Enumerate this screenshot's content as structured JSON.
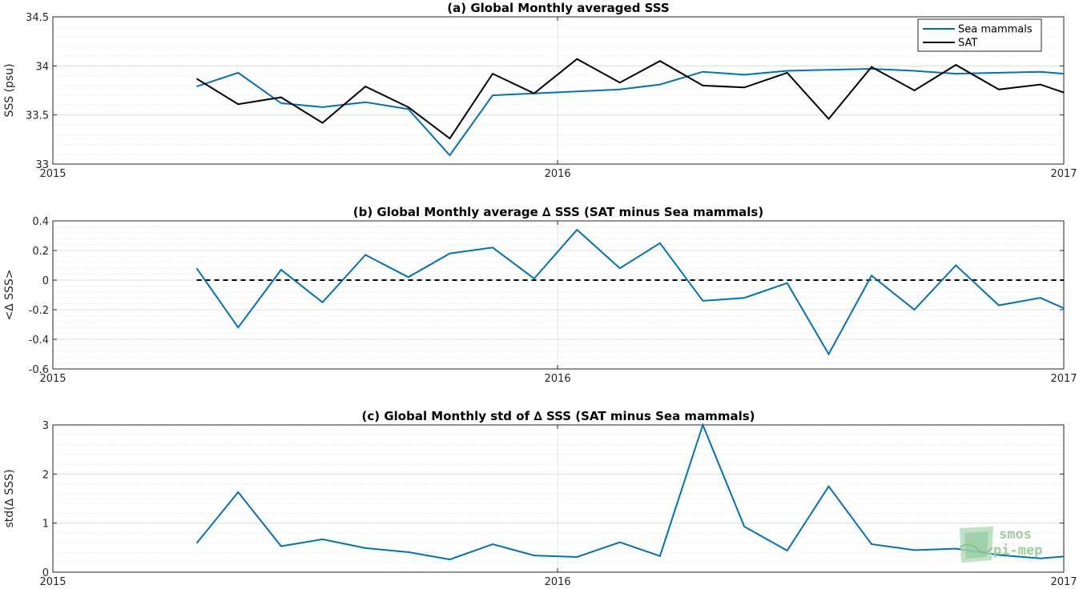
{
  "chart_data": [
    {
      "type": "line",
      "title": "(a) Global Monthly averaged SSS",
      "xlabel": "",
      "ylabel": "SSS (psu)",
      "xlim": [
        "2015-01-01",
        "2017-01-01"
      ],
      "ylim": [
        33,
        34.5
      ],
      "xticks": [
        "2015",
        "2016",
        "2017"
      ],
      "yticks": [
        "33",
        "33.5",
        "34",
        "34.5"
      ],
      "grid": true,
      "legend": "top-right",
      "x": [
        "2015-04-15",
        "2015-05-15",
        "2015-06-15",
        "2015-07-15",
        "2015-08-15",
        "2015-09-15",
        "2015-10-15",
        "2015-11-15",
        "2015-12-15",
        "2016-01-15",
        "2016-02-15",
        "2016-03-15",
        "2016-04-15",
        "2016-05-15",
        "2016-06-15",
        "2016-07-15",
        "2016-08-15",
        "2016-09-15",
        "2016-10-15",
        "2016-11-15",
        "2016-12-15",
        "2017-01-01"
      ],
      "series": [
        {
          "name": "Sea mammals",
          "color": "#0072BD",
          "values": [
            33.79,
            33.93,
            33.62,
            33.58,
            33.63,
            33.56,
            33.09,
            33.7,
            33.72,
            33.74,
            33.76,
            33.81,
            33.94,
            33.91,
            33.95,
            33.96,
            33.97,
            33.95,
            33.92,
            33.93,
            33.94,
            33.92
          ]
        },
        {
          "name": "SAT",
          "color": "#000000",
          "values": [
            33.87,
            33.61,
            33.68,
            33.42,
            33.79,
            33.58,
            33.26,
            33.92,
            33.72,
            34.07,
            33.83,
            34.05,
            33.8,
            33.78,
            33.93,
            33.46,
            33.99,
            33.75,
            34.01,
            33.76,
            33.81,
            33.73
          ]
        }
      ]
    },
    {
      "type": "line",
      "title": "(b) Global Monthly average ∆ SSS (SAT minus Sea mammals)",
      "xlabel": "",
      "ylabel": "<∆ SSS>",
      "xlim": [
        "2015-01-01",
        "2017-01-01"
      ],
      "ylim": [
        -0.6,
        0.4
      ],
      "xticks": [
        "2015",
        "2016",
        "2017"
      ],
      "yticks": [
        "-0.6",
        "-0.4",
        "-0.2",
        "0",
        "0.2",
        "0.4"
      ],
      "grid": true,
      "x": [
        "2015-04-15",
        "2015-05-15",
        "2015-06-15",
        "2015-07-15",
        "2015-08-15",
        "2015-09-15",
        "2015-10-15",
        "2015-11-15",
        "2015-12-15",
        "2016-01-15",
        "2016-02-15",
        "2016-03-15",
        "2016-04-15",
        "2016-05-15",
        "2016-06-15",
        "2016-07-15",
        "2016-08-15",
        "2016-09-15",
        "2016-10-15",
        "2016-11-15",
        "2016-12-15",
        "2017-01-01"
      ],
      "series": [
        {
          "color": "#0072BD",
          "values": [
            0.08,
            -0.32,
            0.07,
            -0.15,
            0.17,
            0.02,
            0.18,
            0.22,
            0.01,
            0.34,
            0.08,
            0.25,
            -0.14,
            -0.12,
            -0.02,
            -0.5,
            0.03,
            -0.2,
            0.1,
            -0.17,
            -0.12,
            -0.19
          ]
        }
      ],
      "reference_line": {
        "y": 0,
        "style": "dashed",
        "color": "#000000"
      }
    },
    {
      "type": "line",
      "title": "(c) Global Monthly std of ∆ SSS (SAT minus Sea mammals)",
      "xlabel": "",
      "ylabel": "std(∆ SSS)",
      "xlim": [
        "2015-01-01",
        "2017-01-01"
      ],
      "ylim": [
        0,
        3
      ],
      "xticks": [
        "2015",
        "2016",
        "2017"
      ],
      "yticks": [
        "0",
        "1",
        "2",
        "3"
      ],
      "grid": true,
      "x": [
        "2015-04-15",
        "2015-05-15",
        "2015-06-15",
        "2015-07-15",
        "2015-08-15",
        "2015-09-15",
        "2015-10-15",
        "2015-11-15",
        "2015-12-15",
        "2016-01-15",
        "2016-02-15",
        "2016-03-15",
        "2016-04-15",
        "2016-05-15",
        "2016-06-15",
        "2016-07-15",
        "2016-08-15",
        "2016-09-15",
        "2016-10-15",
        "2016-11-15",
        "2016-12-15",
        "2017-01-01"
      ],
      "series": [
        {
          "color": "#0072BD",
          "values": [
            0.59,
            1.63,
            0.53,
            0.67,
            0.49,
            0.41,
            0.26,
            0.57,
            0.34,
            0.31,
            0.61,
            0.33,
            3.0,
            0.93,
            0.44,
            1.75,
            0.57,
            0.45,
            0.48,
            0.35,
            0.28,
            0.32
          ]
        }
      ]
    }
  ],
  "watermark": {
    "line1": "smos",
    "line2": "pi-mep",
    "color": "#9ccf9c"
  }
}
